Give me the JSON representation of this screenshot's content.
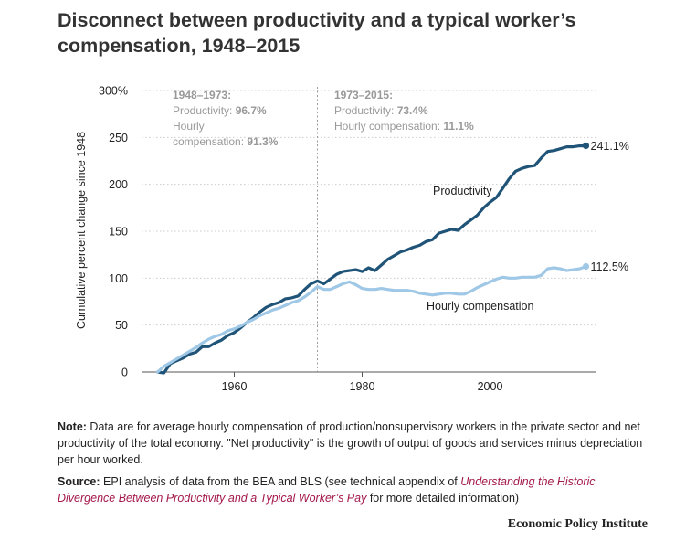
{
  "title": "Disconnect between productivity and a typical worker’s compensation, 1948–2015",
  "colors": {
    "productivity": "#1f5478",
    "compensation": "#9fc7e6",
    "grid": "#cccccc",
    "annotation": "#999999"
  },
  "chart_data": {
    "type": "line",
    "title": "Disconnect between productivity and a typical worker’s compensation, 1948–2015",
    "xlabel": "",
    "ylabel": "Cumulative percent change since 1948",
    "xlim": [
      1948,
      2015
    ],
    "ylim": [
      0,
      300
    ],
    "x_ticks": [
      "1960",
      "1980",
      "2000"
    ],
    "y_ticks": [
      "0",
      "50",
      "100",
      "150",
      "200",
      "250",
      "300%"
    ],
    "grid": true,
    "divider_year": 1973,
    "periods": [
      {
        "heading": "1948–1973:",
        "prod_label": "Productivity: ",
        "prod_value": "96.7%",
        "comp_label_line1": "Hourly",
        "comp_label_line2": "compensation: ",
        "comp_value": "91.3%"
      },
      {
        "heading": "1973–2015:",
        "prod_label": "Productivity: ",
        "prod_value": "73.4%",
        "comp_label": "Hourly compensation: ",
        "comp_value": "11.1%"
      }
    ],
    "series": [
      {
        "name": "Productivity",
        "end_label": "241.1%",
        "x": [
          1948,
          1949,
          1950,
          1951,
          1952,
          1953,
          1954,
          1955,
          1956,
          1957,
          1958,
          1959,
          1960,
          1961,
          1962,
          1963,
          1964,
          1965,
          1966,
          1967,
          1968,
          1969,
          1970,
          1971,
          1972,
          1973,
          1974,
          1975,
          1976,
          1977,
          1978,
          1979,
          1980,
          1981,
          1982,
          1983,
          1984,
          1985,
          1986,
          1987,
          1988,
          1989,
          1990,
          1991,
          1992,
          1993,
          1994,
          1995,
          1996,
          1997,
          1998,
          1999,
          2000,
          2001,
          2002,
          2003,
          2004,
          2005,
          2006,
          2007,
          2008,
          2009,
          2010,
          2011,
          2012,
          2013,
          2014,
          2015
        ],
        "y": [
          0,
          -1,
          9,
          12,
          15,
          19,
          21,
          27,
          27,
          31,
          34,
          39,
          42,
          47,
          53,
          58,
          64,
          69,
          72,
          74,
          78,
          79,
          81,
          88,
          94,
          97,
          94,
          99,
          104,
          107,
          108,
          109,
          107,
          111,
          108,
          114,
          120,
          124,
          128,
          130,
          133,
          135,
          139,
          141,
          148,
          150,
          152,
          151,
          157,
          162,
          167,
          175,
          181,
          186,
          196,
          206,
          214,
          217,
          219,
          220,
          228,
          235,
          236,
          238,
          240,
          240,
          241,
          241.1
        ]
      },
      {
        "name": "Hourly compensation",
        "end_label": "112.5%",
        "x": [
          1948,
          1949,
          1950,
          1951,
          1952,
          1953,
          1954,
          1955,
          1956,
          1957,
          1958,
          1959,
          1960,
          1961,
          1962,
          1963,
          1964,
          1965,
          1966,
          1967,
          1968,
          1969,
          1970,
          1971,
          1972,
          1973,
          1974,
          1975,
          1976,
          1977,
          1978,
          1979,
          1980,
          1981,
          1982,
          1983,
          1984,
          1985,
          1986,
          1987,
          1988,
          1989,
          1990,
          1991,
          1992,
          1993,
          1994,
          1995,
          1996,
          1997,
          1998,
          1999,
          2000,
          2001,
          2002,
          2003,
          2004,
          2005,
          2006,
          2007,
          2008,
          2009,
          2010,
          2011,
          2012,
          2013,
          2014,
          2015
        ],
        "y": [
          0,
          6,
          10,
          14,
          18,
          22,
          26,
          31,
          35,
          38,
          40,
          44,
          46,
          49,
          53,
          56,
          60,
          63,
          66,
          68,
          71,
          74,
          76,
          80,
          85,
          91,
          88,
          88,
          91,
          94,
          96,
          93,
          89,
          88,
          88,
          89,
          88,
          87,
          87,
          87,
          86,
          84,
          83,
          82,
          83,
          84,
          84,
          83,
          83,
          86,
          90,
          93,
          96,
          99,
          101,
          100,
          100,
          101,
          101,
          101,
          103,
          110,
          111,
          110,
          108,
          109,
          110,
          112.5
        ]
      }
    ]
  },
  "note": {
    "label": "Note:",
    "text": " Data are for average hourly compensation of production/nonsupervisory workers in the private sector and net productivity of the total economy. \"Net productivity\" is the growth of output of goods and services minus depreciation per hour worked."
  },
  "source": {
    "label": "Source:",
    "text_before": " EPI analysis of data from the BEA and BLS (see technical appendix of ",
    "link": "Understanding the Historic Divergence Between Productivity and a Typical Worker’s Pay",
    "text_after": " for more detailed information)"
  },
  "brand": "Economic Policy Institute"
}
